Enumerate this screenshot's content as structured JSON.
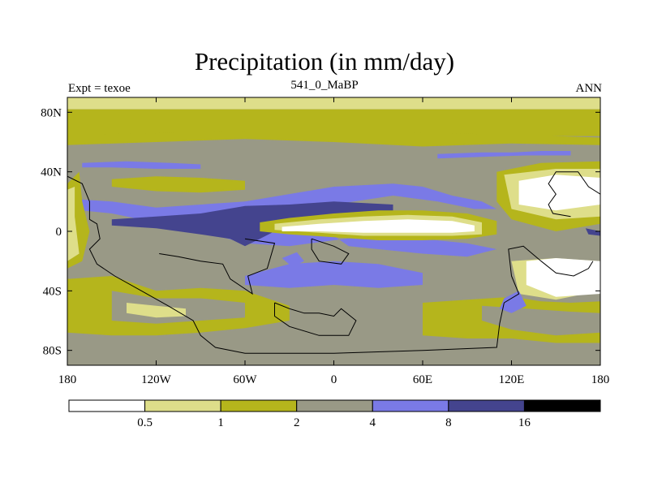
{
  "chart_data": {
    "type": "heatmap",
    "title": "Precipitation (in mm/day)",
    "left_label": "Expt = texoe",
    "center_label": "541_0_MaBP",
    "right_label": "ANN",
    "x_ticks": [
      {
        "value": -180,
        "label": "180"
      },
      {
        "value": -120,
        "label": "120W"
      },
      {
        "value": -60,
        "label": "60W"
      },
      {
        "value": 0,
        "label": "0"
      },
      {
        "value": 60,
        "label": "60E"
      },
      {
        "value": 120,
        "label": "120E"
      },
      {
        "value": 180,
        "label": "180"
      }
    ],
    "y_ticks": [
      {
        "value": 80,
        "label": "80N"
      },
      {
        "value": 40,
        "label": "40N"
      },
      {
        "value": 0,
        "label": "0"
      },
      {
        "value": -40,
        "label": "40S"
      },
      {
        "value": -80,
        "label": "80S"
      }
    ],
    "xlim": [
      -180,
      180
    ],
    "ylim": [
      -90,
      90
    ],
    "levels": [
      0.5,
      1,
      2,
      4,
      8,
      16
    ],
    "level_labels": [
      "0.5",
      "1",
      "2",
      "4",
      "8",
      "16"
    ],
    "colors": [
      "#ffffff",
      "#dede8a",
      "#b5b51c",
      "#999986",
      "#7a7ae6",
      "#44448e",
      "#000000"
    ]
  }
}
